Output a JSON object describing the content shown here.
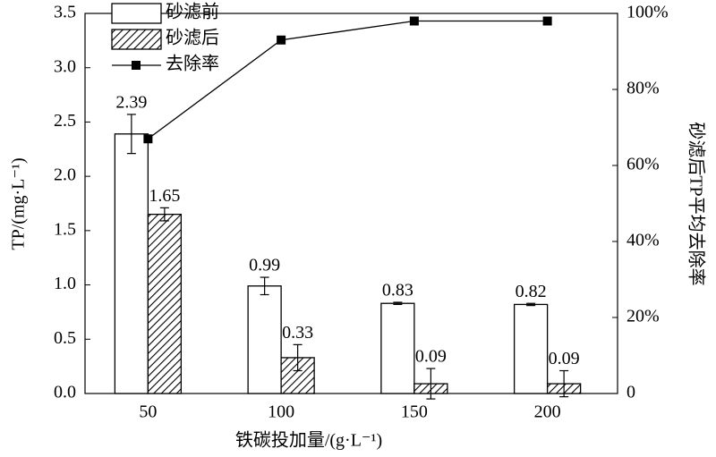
{
  "chart_data": {
    "type": "bar",
    "categories": [
      "50",
      "100",
      "150",
      "200"
    ],
    "series": [
      {
        "name": "砂滤前",
        "color": "#000000",
        "fill": "#ffffff",
        "values": [
          2.39,
          0.99,
          0.83,
          0.82
        ],
        "errors": [
          0.18,
          0.08,
          0.01,
          0.01
        ]
      },
      {
        "name": "砂滤后",
        "color": "#000000",
        "fill": "hatch",
        "values": [
          1.65,
          0.33,
          0.09,
          0.09
        ],
        "errors": [
          0.06,
          0.12,
          0.14,
          0.12
        ]
      },
      {
        "name": "去除率",
        "type": "line",
        "axis": "y2",
        "color": "#000000",
        "values": [
          67,
          93,
          98,
          98
        ]
      }
    ],
    "x_label": "铁碳投加量/(g·L⁻¹)",
    "y_label": "TP/(mg·L⁻¹)",
    "y2_label": "砂滤后TP平均去除率",
    "ylim": [
      0,
      3.5
    ],
    "yticks": [
      {
        "value": 0,
        "label": "0.0"
      },
      {
        "value": 0.5,
        "label": "0.5"
      },
      {
        "value": 1,
        "label": "1.0"
      },
      {
        "value": 1.5,
        "label": "1.5"
      },
      {
        "value": 2,
        "label": "2.0"
      },
      {
        "value": 2.5,
        "label": "2.5"
      },
      {
        "value": 3,
        "label": "3.0"
      },
      {
        "value": 3.5,
        "label": "3.5"
      }
    ],
    "y2lim": [
      0,
      100
    ],
    "y2ticks": [
      0,
      {
        "value": 20,
        "label": "20%"
      },
      {
        "value": 40,
        "label": "40%"
      },
      {
        "value": 60,
        "label": "60%"
      },
      {
        "value": 80,
        "label": "80%"
      },
      {
        "value": 100,
        "label": "100%"
      }
    ],
    "legend": "upper left",
    "grid": false
  }
}
